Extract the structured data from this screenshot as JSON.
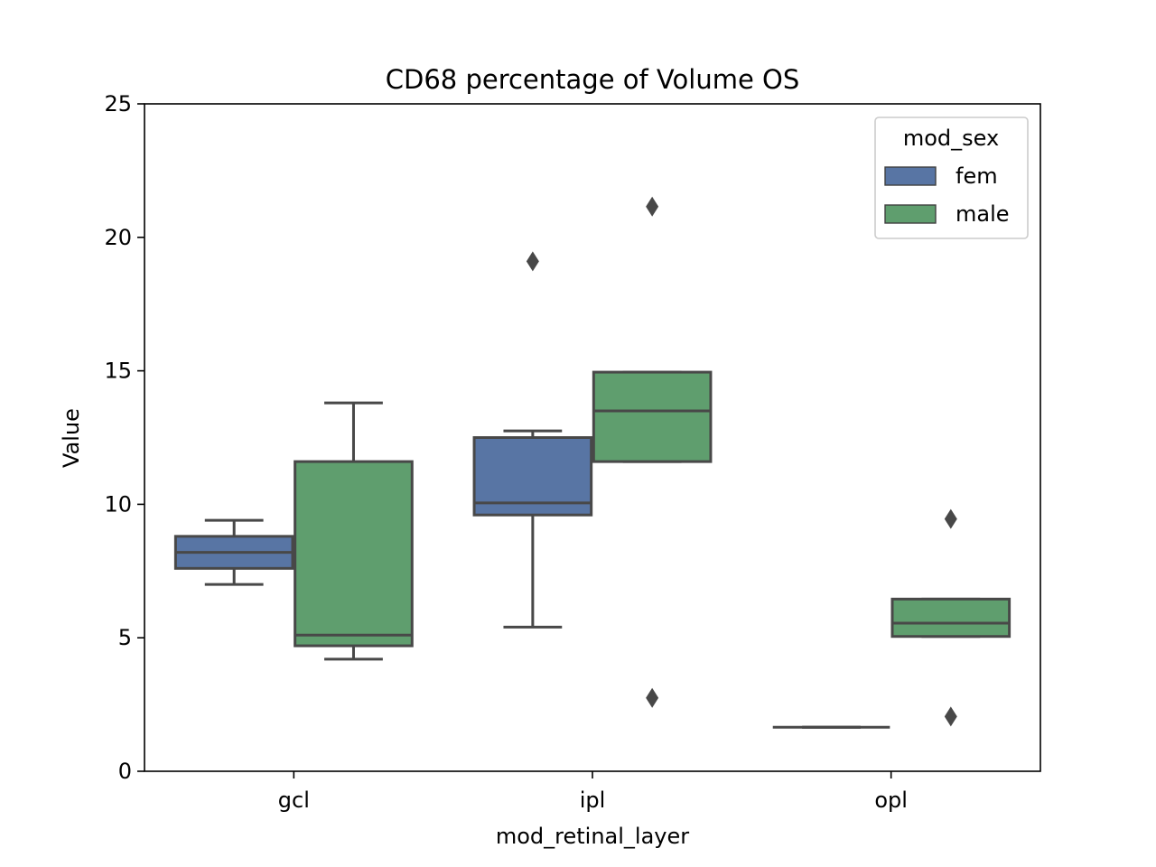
{
  "chart_data": {
    "type": "box",
    "title": "CD68 percentage of Volume OS",
    "xlabel": "mod_retinal_layer",
    "ylabel": "Value",
    "ylim": [
      0,
      25
    ],
    "yticks": [
      0,
      5,
      10,
      15,
      20,
      25
    ],
    "categories": [
      "gcl",
      "ipl",
      "opl"
    ],
    "legend": {
      "title": "mod_sex",
      "position": "top-right"
    },
    "grid": false,
    "series": [
      {
        "name": "fem",
        "color": "#5875a4",
        "boxes": [
          {
            "category": "gcl",
            "whisker_low": 7.0,
            "q1": 7.6,
            "median": 8.2,
            "q3": 8.8,
            "whisker_high": 9.4,
            "outliers": []
          },
          {
            "category": "ipl",
            "whisker_low": 5.4,
            "q1": 9.6,
            "median": 10.05,
            "q3": 12.5,
            "whisker_high": 12.75,
            "outliers": [
              19.1
            ]
          },
          {
            "category": "opl",
            "whisker_low": 1.65,
            "q1": 1.65,
            "median": 1.65,
            "q3": 1.65,
            "whisker_high": 1.65,
            "outliers": []
          }
        ]
      },
      {
        "name": "male",
        "color": "#5f9e6e",
        "boxes": [
          {
            "category": "gcl",
            "whisker_low": 4.2,
            "q1": 4.7,
            "median": 5.1,
            "q3": 11.6,
            "whisker_high": 13.8,
            "outliers": []
          },
          {
            "category": "ipl",
            "whisker_low": 11.6,
            "q1": 11.6,
            "median": 13.5,
            "q3": 14.95,
            "whisker_high": 14.95,
            "outliers": [
              21.15,
              2.75
            ]
          },
          {
            "category": "opl",
            "whisker_low": 5.05,
            "q1": 5.05,
            "median": 5.55,
            "q3": 6.45,
            "whisker_high": 6.45,
            "outliers": [
              9.45,
              2.05
            ]
          }
        ]
      }
    ]
  }
}
